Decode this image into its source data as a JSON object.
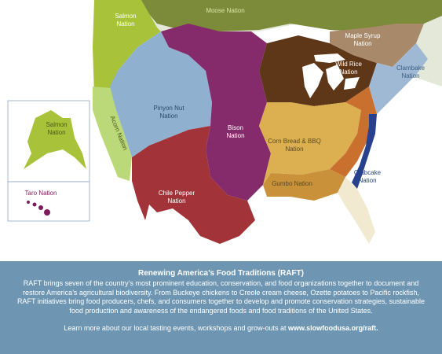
{
  "map": {
    "nations": [
      {
        "key": "moose",
        "label": "Moose Nation",
        "color": "#7b8b3a"
      },
      {
        "key": "salmon_pnw",
        "label": "Salmon Nation",
        "color": "#a8c23a"
      },
      {
        "key": "salmon_ak",
        "label": "Salmon Nation",
        "color": "#a8c23a"
      },
      {
        "key": "acorn",
        "label": "Acorn Nation",
        "color": "#bcd97a"
      },
      {
        "key": "pinyon",
        "label": "Pinyon Nut Nation",
        "color": "#8fb0cf"
      },
      {
        "key": "bison",
        "label": "Bison Nation",
        "color": "#852a6a"
      },
      {
        "key": "chile",
        "label": "Chile Pepper Nation",
        "color": "#a23338"
      },
      {
        "key": "cornbread",
        "label": "Corn Bread & BBQ Nation",
        "color": "#dcb050"
      },
      {
        "key": "gumbo",
        "label": "Gumbo Nation",
        "color": "#c9913a"
      },
      {
        "key": "wildrice",
        "label": "Wild Rice Nation",
        "color": "#5e3718"
      },
      {
        "key": "maple",
        "label": "Maple Syrup Nation",
        "color": "#a88a6a"
      },
      {
        "key": "clambake",
        "label": "Clambake Nation",
        "color": "#9fb9d4"
      },
      {
        "key": "crabcake",
        "label": "Crabcake Nation",
        "color": "#27418c"
      },
      {
        "key": "taro",
        "label": "Taro Nation",
        "color": "#7d1c5c"
      }
    ],
    "extra_labels": [
      "Wild Rice",
      "Nation"
    ]
  },
  "info": {
    "title": "Renewing America’s Food Traditions (RAFT)",
    "body": "RAFT brings seven of the country’s most prominent education, conservation, and food organizations together to document and restore America’s agricultural biodiversity. From Buckeye chickens to Creole cream cheese, Ozette potatoes to Pacific rockfish, RAFT initiatives bring food producers, chefs, and consumers together to develop and promote conservation strategies, sustainable food production and awareness of the endangered foods and food traditions of the United States.",
    "link_prefix": "Learn more about our local tasting events, workshops and grow-outs at ",
    "url": "www.slowfoodusa.org/raft."
  }
}
